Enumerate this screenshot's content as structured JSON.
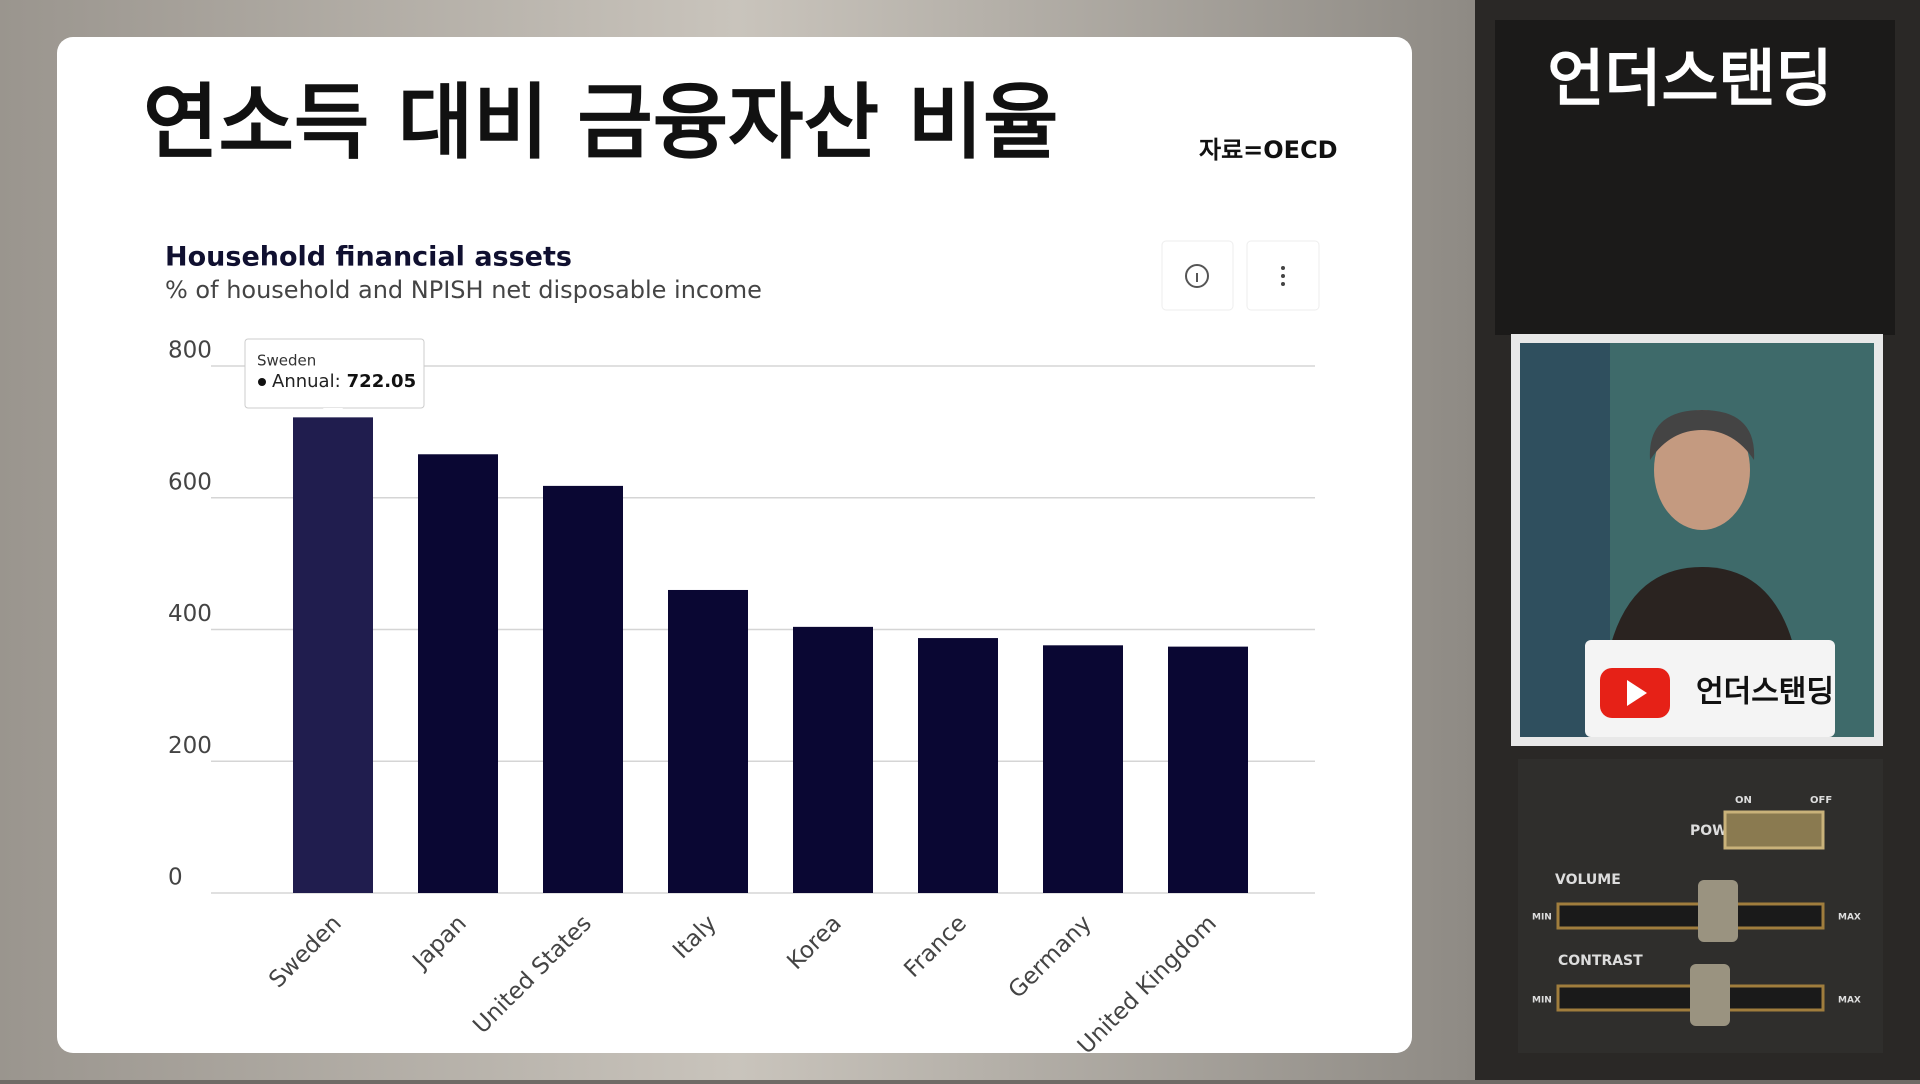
{
  "header": {
    "title": "연소득 대비 금융자산 비율",
    "source": "자료=OECD"
  },
  "chart_data": {
    "type": "bar",
    "title": "Household financial assets",
    "subtitle": "% of household and NPISH net disposable income",
    "categories": [
      "Sweden",
      "Japan",
      "United States",
      "Italy",
      "Korea",
      "France",
      "Germany",
      "United Kingdom"
    ],
    "values": [
      722.05,
      666,
      618,
      460,
      404,
      387,
      376,
      374
    ],
    "colors": [
      "#201d4e",
      "#0a0733",
      "#0a0733",
      "#0a0733",
      "#0a0733",
      "#0a0733",
      "#0a0733",
      "#0a0733"
    ],
    "ylim": [
      0,
      800
    ],
    "yticks": [
      0,
      200,
      400,
      600,
      800
    ],
    "grid": true,
    "tooltip_label": "Annual:"
  },
  "side": {
    "channel": "언더스탠딩",
    "badge": "언더스탠딩",
    "controls": {
      "on": "ON",
      "off": "OFF",
      "power": "POWER",
      "volume": "VOLUME",
      "contrast": "CONTRAST",
      "min": "MIN",
      "max": "MAX"
    }
  }
}
